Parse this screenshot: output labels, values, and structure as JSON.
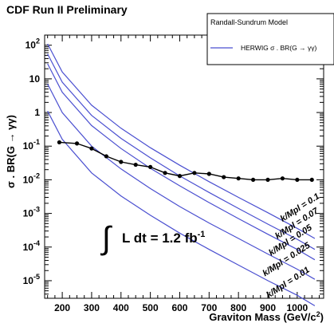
{
  "chart_data": {
    "type": "line",
    "title": "CDF Run II Preliminary",
    "xlabel": "Graviton Mass (GeV/c²)",
    "ylabel": "σ . BR(G → γγ)",
    "xlim": [
      140,
      1090
    ],
    "ylim": [
      3e-06,
      200
    ],
    "yscale": "log",
    "grid": false,
    "legend": {
      "position": "top-right",
      "title": "Randall-Sundrum Model",
      "entries": [
        "HERWIG σ . BR(G → γγ)"
      ]
    },
    "xticks": [
      200,
      300,
      400,
      500,
      600,
      700,
      800,
      900,
      1000
    ],
    "yticks": [
      {
        "value": 1e-05,
        "base": "10",
        "exp": "-5"
      },
      {
        "value": 0.0001,
        "base": "10",
        "exp": "-4"
      },
      {
        "value": 0.001,
        "base": "10",
        "exp": "-3"
      },
      {
        "value": 0.01,
        "base": "10",
        "exp": "-2"
      },
      {
        "value": 0.1,
        "base": "10",
        "exp": "-1"
      },
      {
        "value": 1,
        "base": "1",
        "exp": ""
      },
      {
        "value": 10,
        "base": "10",
        "exp": ""
      },
      {
        "value": 100,
        "base": "10",
        "exp": "2"
      }
    ],
    "series": [
      {
        "name": "k/Mpl = 0.1",
        "color": "#4a4fd0",
        "x": [
          150,
          200,
          300,
          400,
          500,
          600,
          700,
          800,
          900,
          1000,
          1060
        ],
        "y": [
          110,
          16,
          1.65,
          0.34,
          0.09,
          0.027,
          0.0088,
          0.003,
          0.00105,
          0.00036,
          0.00018
        ]
      },
      {
        "name": "k/Mpl = 0.07",
        "color": "#4a4fd0",
        "x": [
          150,
          200,
          300,
          400,
          500,
          600,
          700,
          800,
          900,
          1000,
          1060
        ],
        "y": [
          55,
          8,
          0.82,
          0.17,
          0.045,
          0.013,
          0.0042,
          0.0014,
          0.00048,
          0.00017,
          8.5e-05
        ]
      },
      {
        "name": "k/Mpl = 0.05",
        "color": "#4a4fd0",
        "x": [
          150,
          200,
          300,
          400,
          500,
          600,
          700,
          800,
          900,
          1000,
          1060
        ],
        "y": [
          28,
          4,
          0.41,
          0.085,
          0.022,
          0.0066,
          0.0021,
          0.0007,
          0.00024,
          8.5e-05,
          4.2e-05
        ]
      },
      {
        "name": "k/Mpl = 0.025",
        "color": "#4a4fd0",
        "x": [
          150,
          200,
          300,
          400,
          500,
          600,
          700,
          800,
          900,
          1000,
          1060
        ],
        "y": [
          7,
          1,
          0.1,
          0.021,
          0.0055,
          0.0016,
          0.00052,
          0.00018,
          6.2e-05,
          2.2e-05,
          1.1e-05
        ]
      },
      {
        "name": "k/Mpl = 0.01",
        "color": "#4a4fd0",
        "x": [
          150,
          200,
          300,
          400,
          500,
          600,
          700,
          800,
          900,
          1000,
          1060
        ],
        "y": [
          1.1,
          0.16,
          0.016,
          0.0033,
          0.00088,
          0.00026,
          8.5e-05,
          2.9e-05,
          1e-05,
          3.7e-06,
          1.8e-06
        ]
      },
      {
        "name": "limit",
        "color": "#000000",
        "markers": true,
        "x": [
          190,
          250,
          300,
          350,
          400,
          450,
          500,
          550,
          600,
          650,
          700,
          750,
          800,
          850,
          900,
          950,
          1000,
          1050
        ],
        "y": [
          0.13,
          0.12,
          0.085,
          0.05,
          0.034,
          0.028,
          0.024,
          0.016,
          0.013,
          0.016,
          0.015,
          0.012,
          0.011,
          0.01,
          0.01,
          0.011,
          0.01,
          0.01
        ]
      }
    ],
    "annotations": {
      "curve_labels": [
        "k/Mpl = 0.1",
        "k/Mpl = 0.07",
        "k/Mpl = 0.05",
        "k/Mpl = 0.025",
        "k/Mpl = 0.01"
      ],
      "luminosity": {
        "main": "L dt = 1.2 fb",
        "sup": "-1"
      }
    }
  }
}
